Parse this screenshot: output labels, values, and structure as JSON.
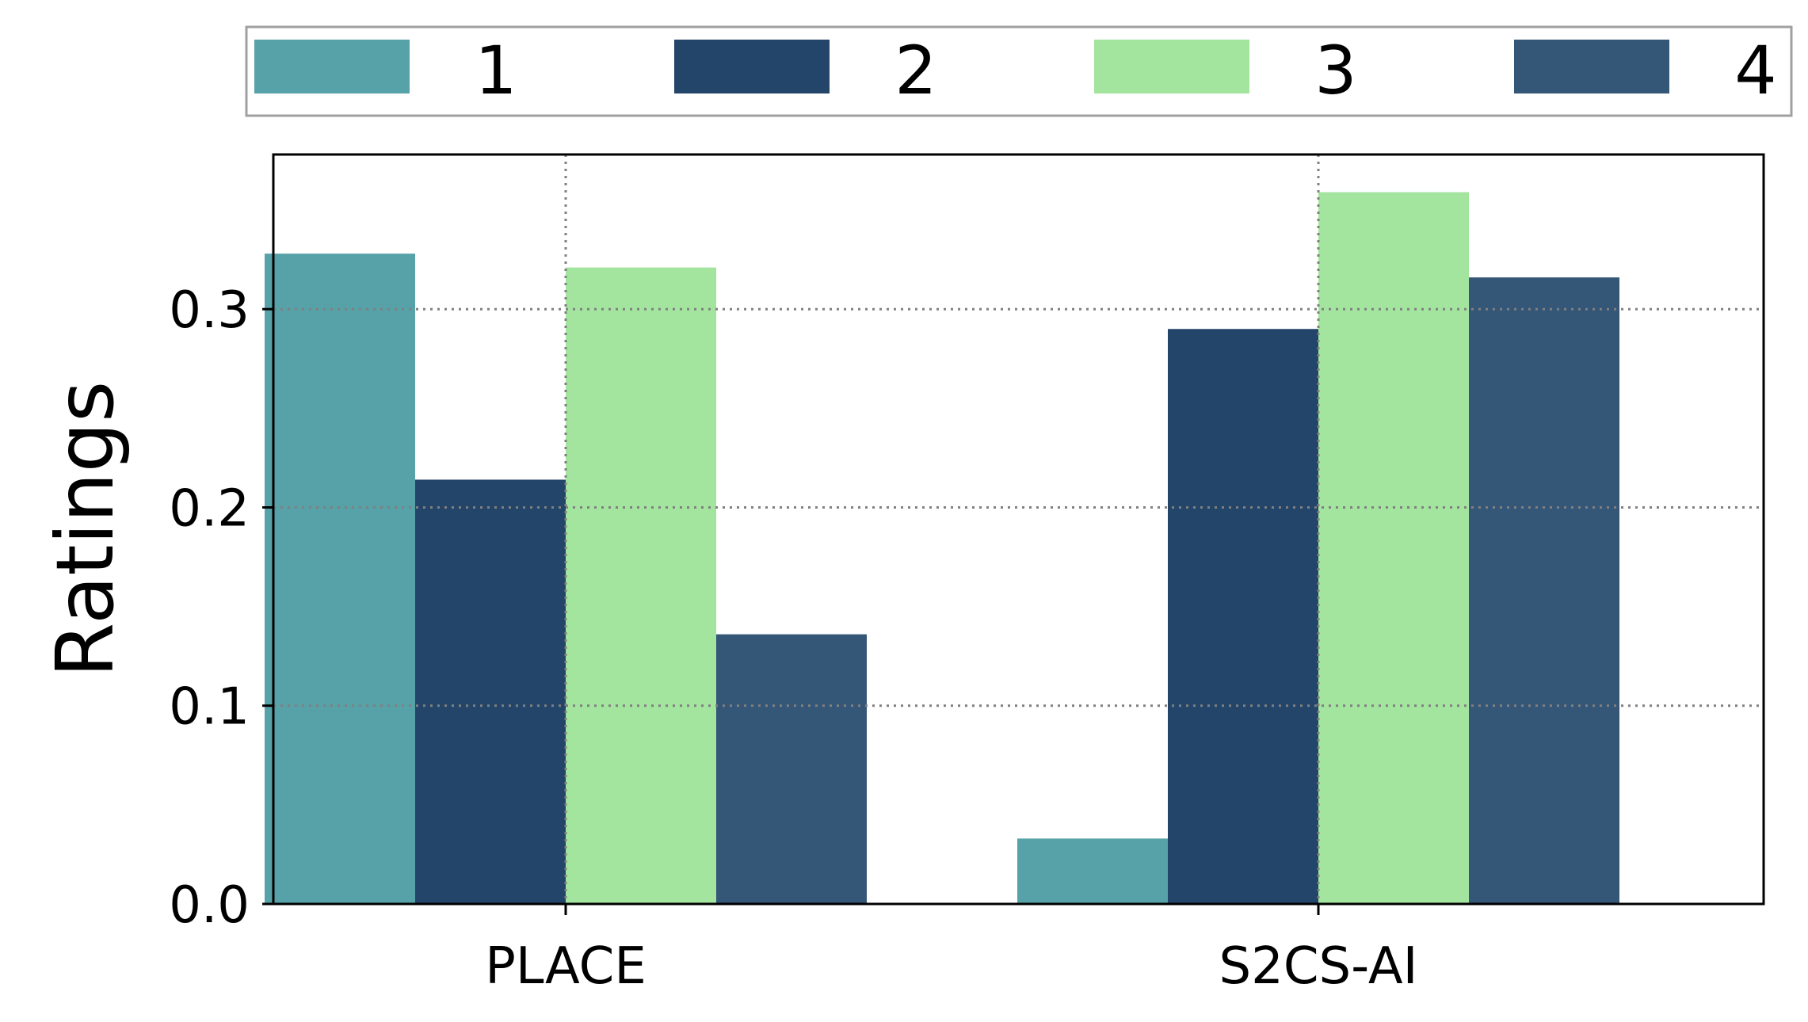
{
  "chart_data": {
    "type": "bar",
    "categories": [
      "PLACE",
      "S2CS-AI"
    ],
    "series": [
      {
        "name": "1",
        "color": "#57A2A8",
        "values": [
          0.328,
          0.033
        ]
      },
      {
        "name": "2",
        "color": "#23456A",
        "values": [
          0.214,
          0.29
        ]
      },
      {
        "name": "3",
        "color": "#A3E49F",
        "values": [
          0.321,
          0.359
        ]
      },
      {
        "name": "4",
        "color": "#345677",
        "values": [
          0.136,
          0.316
        ]
      }
    ],
    "title": "",
    "xlabel": "",
    "ylabel": "Ratings",
    "ylim": [
      0,
      0.378
    ],
    "yticks": [
      0.0,
      0.1,
      0.2,
      0.3
    ],
    "ytick_labels": [
      "0.0",
      "0.1",
      "0.2",
      "0.3"
    ],
    "grid": true,
    "grid_style": "dotted",
    "legend_position": "top",
    "colors": {
      "grid": "#808080",
      "axes": "#000000",
      "legend_border": "#A0A0A0"
    }
  }
}
